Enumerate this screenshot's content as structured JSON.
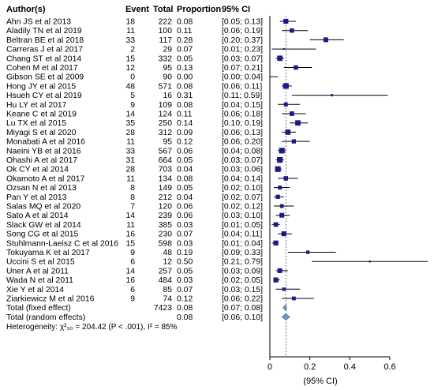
{
  "chart_data": {
    "type": "forest",
    "columns": [
      "Author(s)",
      "Event",
      "Total",
      "Proportion",
      "95% CI"
    ],
    "rows": [
      {
        "author": "Ahn JS et al 2013",
        "event": "18",
        "total": "222",
        "prop": "0.08",
        "ci": "[0.05; 0.13]",
        "est": 0.08,
        "lo": 0.05,
        "hi": 0.13,
        "w": 2.6
      },
      {
        "author": "Aladily TN et al 2019",
        "event": "11",
        "total": "100",
        "prop": "0.11",
        "ci": "[0.06; 0.19]",
        "est": 0.11,
        "lo": 0.06,
        "hi": 0.19,
        "w": 2.3
      },
      {
        "author": "Beltran BE et al 2018",
        "event": "33",
        "total": "117",
        "prop": "0.28",
        "ci": "[0.20; 0.37]",
        "est": 0.28,
        "lo": 0.2,
        "hi": 0.37,
        "w": 2.5
      },
      {
        "author": "Carreras J et al 2017",
        "event": "2",
        "total": "29",
        "prop": "0.07",
        "ci": "[0.01; 0.23]",
        "est": 0.07,
        "lo": 0.01,
        "hi": 0.23,
        "w": 0.9
      },
      {
        "author": "Chang ST et al 2014",
        "event": "15",
        "total": "332",
        "prop": "0.05",
        "ci": "[0.03; 0.07]",
        "est": 0.05,
        "lo": 0.03,
        "hi": 0.07,
        "w": 2.8
      },
      {
        "author": "Cohen M et al 2017",
        "event": "12",
        "total": "95",
        "prop": "0.13",
        "ci": "[0.07; 0.21]",
        "est": 0.13,
        "lo": 0.07,
        "hi": 0.21,
        "w": 2.3
      },
      {
        "author": "Gibson SE et al 2009",
        "event": "0",
        "total": "90",
        "prop": "0.00",
        "ci": "[0.00; 0.04]",
        "est": 0.0,
        "lo": 0.0,
        "hi": 0.04,
        "w": 0.6
      },
      {
        "author": "Hong JY et al 2015",
        "event": "48",
        "total": "571",
        "prop": "0.08",
        "ci": "[0.06; 0.11]",
        "est": 0.08,
        "lo": 0.06,
        "hi": 0.11,
        "w": 3.0
      },
      {
        "author": "Hsueh CY et al 2019",
        "event": "5",
        "total": "16",
        "prop": "0.31",
        "ci": "[0.11; 0.59]",
        "est": 0.31,
        "lo": 0.11,
        "hi": 0.59,
        "w": 1.2
      },
      {
        "author": "Hu LY et al 2017",
        "event": "9",
        "total": "109",
        "prop": "0.08",
        "ci": "[0.04; 0.15]",
        "est": 0.08,
        "lo": 0.04,
        "hi": 0.15,
        "w": 2.1
      },
      {
        "author": "Keane C et al 2019",
        "event": "14",
        "total": "124",
        "prop": "0.11",
        "ci": "[0.06; 0.18]",
        "est": 0.11,
        "lo": 0.06,
        "hi": 0.18,
        "w": 2.4
      },
      {
        "author": "Lu TX et al 2015",
        "event": "35",
        "total": "250",
        "prop": "0.14",
        "ci": "[0.10; 0.19]",
        "est": 0.14,
        "lo": 0.1,
        "hi": 0.19,
        "w": 2.8
      },
      {
        "author": "Miyagi S et al 2020",
        "event": "28",
        "total": "312",
        "prop": "0.09",
        "ci": "[0.06; 0.13]",
        "est": 0.09,
        "lo": 0.06,
        "hi": 0.13,
        "w": 2.8
      },
      {
        "author": "Monabati A et al 2016",
        "event": "11",
        "total": "95",
        "prop": "0.12",
        "ci": "[0.06; 0.20]",
        "est": 0.12,
        "lo": 0.06,
        "hi": 0.2,
        "w": 2.2
      },
      {
        "author": "Naeini YB et al 2016",
        "event": "33",
        "total": "567",
        "prop": "0.06",
        "ci": "[0.04; 0.08]",
        "est": 0.06,
        "lo": 0.04,
        "hi": 0.08,
        "w": 3.0
      },
      {
        "author": "Ohashi A et al 2017",
        "event": "31",
        "total": "664",
        "prop": "0.05",
        "ci": "[0.03; 0.07]",
        "est": 0.05,
        "lo": 0.03,
        "hi": 0.07,
        "w": 3.0
      },
      {
        "author": "Ok CY et al 2014",
        "event": "28",
        "total": "703",
        "prop": "0.04",
        "ci": "[0.03; 0.06]",
        "est": 0.04,
        "lo": 0.03,
        "hi": 0.06,
        "w": 3.0
      },
      {
        "author": "Okamoto A et al 2017",
        "event": "11",
        "total": "134",
        "prop": "0.08",
        "ci": "[0.04; 0.14]",
        "est": 0.08,
        "lo": 0.04,
        "hi": 0.14,
        "w": 2.3
      },
      {
        "author": "Ozsan N et al 2013",
        "event": "8",
        "total": "149",
        "prop": "0.05",
        "ci": "[0.02; 0.10]",
        "est": 0.05,
        "lo": 0.02,
        "hi": 0.1,
        "w": 2.1
      },
      {
        "author": "Pan Y et al 2013",
        "event": "8",
        "total": "212",
        "prop": "0.04",
        "ci": "[0.02; 0.07]",
        "est": 0.04,
        "lo": 0.02,
        "hi": 0.07,
        "w": 2.2
      },
      {
        "author": "Salas MQ et al 2020",
        "event": "7",
        "total": "120",
        "prop": "0.06",
        "ci": "[0.02; 0.12]",
        "est": 0.06,
        "lo": 0.02,
        "hi": 0.12,
        "w": 2.0
      },
      {
        "author": "Sato A et al 2014",
        "event": "14",
        "total": "239",
        "prop": "0.06",
        "ci": "[0.03; 0.10]",
        "est": 0.06,
        "lo": 0.03,
        "hi": 0.1,
        "w": 2.5
      },
      {
        "author": "Slack GW et al 2014",
        "event": "11",
        "total": "385",
        "prop": "0.03",
        "ci": "[0.01; 0.05]",
        "est": 0.03,
        "lo": 0.01,
        "hi": 0.05,
        "w": 2.4
      },
      {
        "author": "Song CG et al 2015",
        "event": "16",
        "total": "230",
        "prop": "0.07",
        "ci": "[0.04; 0.11]",
        "est": 0.07,
        "lo": 0.04,
        "hi": 0.11,
        "w": 2.6
      },
      {
        "author": "Stuhlmann-Laeisz C et al 2016",
        "event": "15",
        "total": "598",
        "prop": "0.03",
        "ci": "[0.01; 0.04]",
        "est": 0.03,
        "lo": 0.01,
        "hi": 0.04,
        "w": 2.6
      },
      {
        "author": "Tokuyama K et al 2017",
        "event": "9",
        "total": "48",
        "prop": "0.19",
        "ci": "[0.09; 0.33]",
        "est": 0.19,
        "lo": 0.09,
        "hi": 0.33,
        "w": 1.8
      },
      {
        "author": "Uccini S et al 2015",
        "event": "6",
        "total": "12",
        "prop": "0.50",
        "ci": "[0.21; 0.79]",
        "est": 0.5,
        "lo": 0.21,
        "hi": 0.79,
        "w": 1.0
      },
      {
        "author": "Uner A et al 2011",
        "event": "14",
        "total": "257",
        "prop": "0.05",
        "ci": "[0.03; 0.09]",
        "est": 0.05,
        "lo": 0.03,
        "hi": 0.09,
        "w": 2.5
      },
      {
        "author": "Wada N et al 2011",
        "event": "16",
        "total": "484",
        "prop": "0.03",
        "ci": "[0.02; 0.05]",
        "est": 0.03,
        "lo": 0.02,
        "hi": 0.05,
        "w": 2.6
      },
      {
        "author": "Xie Y et al 2014",
        "event": "6",
        "total": "85",
        "prop": "0.07",
        "ci": "[0.03; 0.15]",
        "est": 0.07,
        "lo": 0.03,
        "hi": 0.15,
        "w": 1.8
      },
      {
        "author": "Ziarkiewicz M et al 2016",
        "event": "9",
        "total": "74",
        "prop": "0.12",
        "ci": "[0.06; 0.22]",
        "est": 0.12,
        "lo": 0.06,
        "hi": 0.22,
        "w": 2.0
      }
    ],
    "fixed": {
      "label": "Total (fixed effect)",
      "total": "7423",
      "prop": "0.08",
      "ci": "[0.07; 0.08]",
      "est": 0.08,
      "lo": 0.07,
      "hi": 0.08
    },
    "random": {
      "label": "Total (random effects)",
      "prop": "0.08",
      "ci": "[0.06; 0.10]",
      "est": 0.08,
      "lo": 0.06,
      "hi": 0.1
    },
    "heterogeneity": "Heterogeneity: χ²₃₀ = 204.42 (P < .001), I² = 85%",
    "xlim": [
      0,
      0.6
    ],
    "xticks": [
      "0",
      "0.2",
      "0.4",
      "0.6"
    ],
    "xticks_v": [
      0,
      0.2,
      0.4,
      0.6
    ],
    "xlabel": "(95% CI)",
    "colors": {
      "box": "#1a1a8c",
      "summary": "#6e9ac7",
      "line": "#000000"
    }
  }
}
